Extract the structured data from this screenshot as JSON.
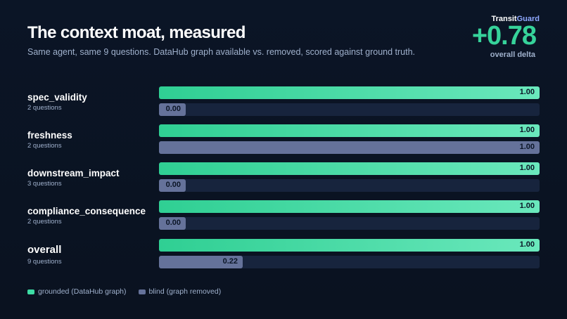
{
  "header": {
    "title": "The context moat, measured",
    "subtitle": "Same agent, same 9 questions. DataHub graph available vs. removed, scored against ground truth."
  },
  "brand": {
    "part1": "Transit",
    "part2": "Guard"
  },
  "delta": {
    "value": "+0.78",
    "label": "overall delta"
  },
  "legend": {
    "grounded": "grounded (DataHub graph)",
    "blind": "blind (graph removed)"
  },
  "colors": {
    "grounded": "#36d29a",
    "blind": "#65729a",
    "background": "#0b1526",
    "track": "#17243d"
  },
  "chart_data": {
    "type": "bar",
    "orientation": "horizontal",
    "xlim": [
      0,
      1
    ],
    "grid": false,
    "legend_position": "bottom-left",
    "categories": [
      "spec_validity",
      "freshness",
      "downstream_impact",
      "compliance_consequence",
      "overall"
    ],
    "category_subtitles": [
      "2 questions",
      "2 questions",
      "3 questions",
      "2 questions",
      "9 questions"
    ],
    "series": [
      {
        "name": "grounded (DataHub graph)",
        "values": [
          1.0,
          1.0,
          1.0,
          1.0,
          1.0
        ],
        "labels": [
          "1.00",
          "1.00",
          "1.00",
          "1.00",
          "1.00"
        ]
      },
      {
        "name": "blind (graph removed)",
        "values": [
          0.0,
          1.0,
          0.0,
          0.0,
          0.22
        ],
        "labels": [
          "0.00",
          "1.00",
          "0.00",
          "0.00",
          "0.22"
        ]
      }
    ]
  }
}
